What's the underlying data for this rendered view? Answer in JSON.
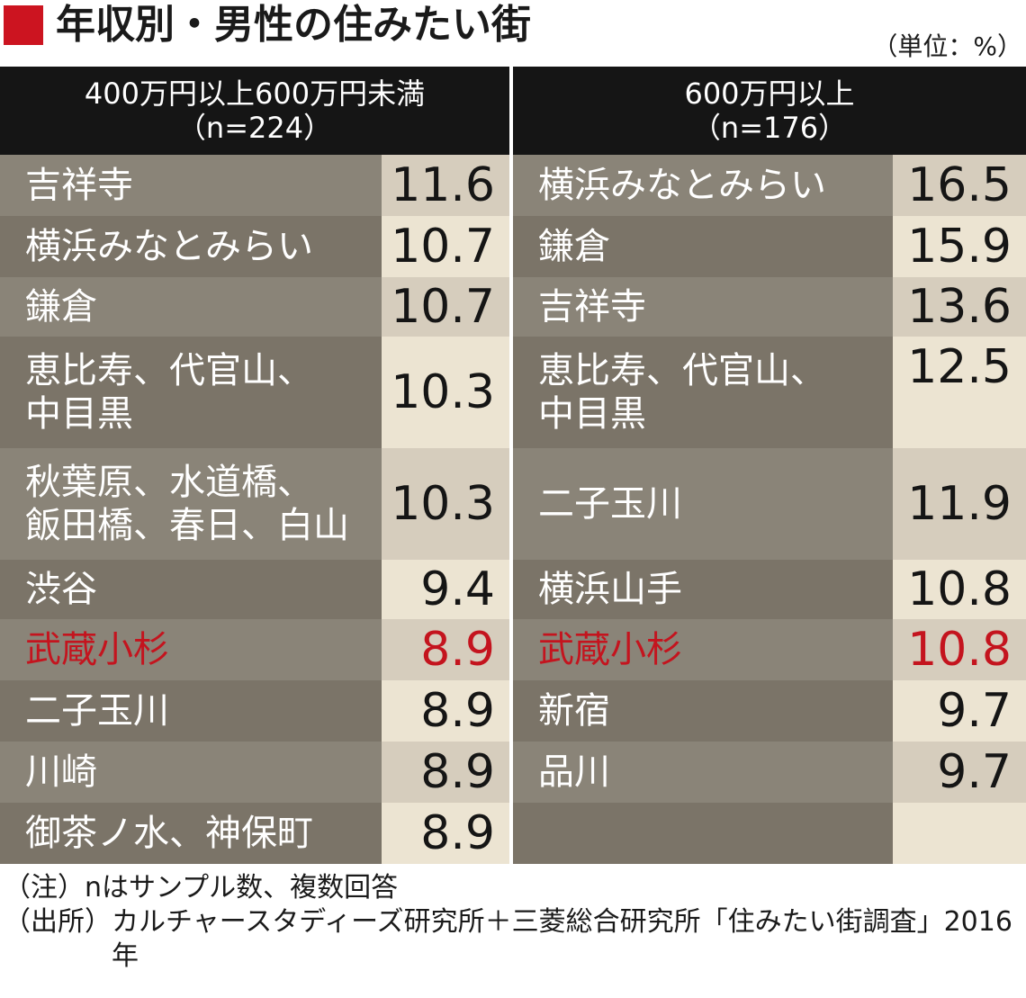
{
  "title": "年収別・男性の住みたい街",
  "unit": "（単位：%）",
  "colors": {
    "accent": "#cc1420",
    "header_bg": "#151515",
    "name_bg_odd": "#8a8478",
    "name_bg_even": "#7b7468",
    "value_bg_odd": "#d6cdbd",
    "value_bg_even": "#ece4d2",
    "highlight": "#c4141e"
  },
  "chart_data": {
    "type": "table",
    "groups": [
      {
        "header_line1": "400万円以上600万円未満",
        "header_line2": "（n=224）",
        "rows": [
          {
            "name": "吉祥寺",
            "value": "11.6",
            "highlight": false
          },
          {
            "name": "横浜みなとみらい",
            "value": "10.7",
            "highlight": false
          },
          {
            "name": "鎌倉",
            "value": "10.7",
            "highlight": false
          },
          {
            "name": "恵比寿、代官山、\n中目黒",
            "value": "10.3",
            "highlight": false
          },
          {
            "name": "秋葉原、水道橋、\n飯田橋、春日、白山",
            "value": "10.3",
            "highlight": false
          },
          {
            "name": "渋谷",
            "value": "9.4",
            "highlight": false
          },
          {
            "name": "武蔵小杉",
            "value": "8.9",
            "highlight": true
          },
          {
            "name": "二子玉川",
            "value": "8.9",
            "highlight": false
          },
          {
            "name": "川崎",
            "value": "8.9",
            "highlight": false
          },
          {
            "name": "御茶ノ水、神保町",
            "value": "8.9",
            "highlight": false
          }
        ]
      },
      {
        "header_line1": "600万円以上",
        "header_line2": "（n=176）",
        "rows": [
          {
            "name": "横浜みなとみらい",
            "value": "16.5",
            "highlight": false
          },
          {
            "name": "鎌倉",
            "value": "15.9",
            "highlight": false
          },
          {
            "name": "吉祥寺",
            "value": "13.6",
            "highlight": false
          },
          {
            "name": "恵比寿、代官山、\n中目黒",
            "value": "12.5",
            "highlight": false
          },
          {
            "name": "二子玉川",
            "value": "11.9",
            "highlight": false
          },
          {
            "name": "横浜山手",
            "value": "10.8",
            "highlight": false
          },
          {
            "name": "武蔵小杉",
            "value": "10.8",
            "highlight": true
          },
          {
            "name": "新宿",
            "value": "9.7",
            "highlight": false
          },
          {
            "name": "品川",
            "value": "9.7",
            "highlight": false
          },
          {
            "name": "",
            "value": "",
            "highlight": false
          }
        ]
      }
    ]
  },
  "notes": [
    {
      "label": "（注）",
      "text": "nはサンプル数、複数回答"
    },
    {
      "label": "（出所）",
      "text": "カルチャースタディーズ研究所＋三菱総合研究所「住みたい街調査」2016年"
    }
  ]
}
